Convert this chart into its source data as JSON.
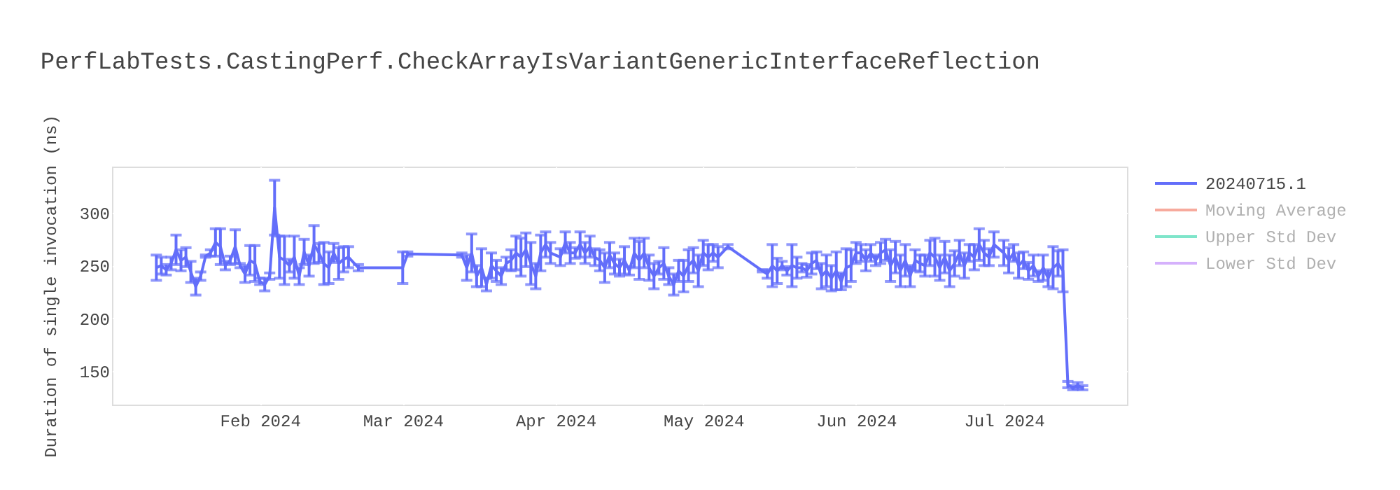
{
  "chart_data": {
    "type": "line",
    "title": "PerfLabTests.CastingPerf.CheckArrayIsVariantGenericInterfaceReflection",
    "ylabel": "Duration of single invocation (ns)",
    "xlim": [
      "2024-01-02",
      "2024-07-26"
    ],
    "xticks": [
      {
        "value": "2024-02-01",
        "label": "Feb 2024"
      },
      {
        "value": "2024-03-01",
        "label": "Mar 2024"
      },
      {
        "value": "2024-04-01",
        "label": "Apr 2024"
      },
      {
        "value": "2024-05-01",
        "label": "May 2024"
      },
      {
        "value": "2024-06-01",
        "label": "Jun 2024"
      },
      {
        "value": "2024-07-01",
        "label": "Jul 2024"
      }
    ],
    "ylim": [
      118,
      344
    ],
    "yticks": [
      150,
      200,
      250,
      300
    ],
    "grid": true,
    "legend": "right",
    "marker": "none",
    "line_style": "solid",
    "series": [
      {
        "name": "20240715.1",
        "color": "#636efa",
        "x": [
          "2024-01-11",
          "2024-01-12",
          "2024-01-13",
          "2024-01-14",
          "2024-01-15",
          "2024-01-16",
          "2024-01-17",
          "2024-01-18",
          "2024-01-19",
          "2024-01-20",
          "2024-01-21",
          "2024-01-22",
          "2024-01-23",
          "2024-01-24",
          "2024-01-25",
          "2024-01-26",
          "2024-01-27",
          "2024-01-28",
          "2024-01-29",
          "2024-01-30",
          "2024-01-31",
          "2024-02-01",
          "2024-02-02",
          "2024-02-03",
          "2024-02-04",
          "2024-02-05",
          "2024-02-06",
          "2024-02-07",
          "2024-02-08",
          "2024-02-09",
          "2024-02-10",
          "2024-02-11",
          "2024-02-12",
          "2024-02-13",
          "2024-02-14",
          "2024-02-15",
          "2024-02-16",
          "2024-02-17",
          "2024-02-18",
          "2024-02-19",
          "2024-02-21",
          "2024-03-01",
          "2024-03-02",
          "2024-03-13",
          "2024-03-14",
          "2024-03-15",
          "2024-03-16",
          "2024-03-17",
          "2024-03-18",
          "2024-03-19",
          "2024-03-20",
          "2024-03-21",
          "2024-03-22",
          "2024-03-23",
          "2024-03-24",
          "2024-03-25",
          "2024-03-26",
          "2024-03-27",
          "2024-03-28",
          "2024-03-29",
          "2024-03-30",
          "2024-03-31",
          "2024-04-02",
          "2024-04-03",
          "2024-04-04",
          "2024-04-05",
          "2024-04-06",
          "2024-04-07",
          "2024-04-08",
          "2024-04-09",
          "2024-04-10",
          "2024-04-11",
          "2024-04-12",
          "2024-04-13",
          "2024-04-14",
          "2024-04-15",
          "2024-04-16",
          "2024-04-17",
          "2024-04-18",
          "2024-04-19",
          "2024-04-20",
          "2024-04-21",
          "2024-04-22",
          "2024-04-23",
          "2024-04-24",
          "2024-04-25",
          "2024-04-26",
          "2024-04-27",
          "2024-04-28",
          "2024-04-29",
          "2024-04-30",
          "2024-05-01",
          "2024-05-02",
          "2024-05-03",
          "2024-05-04",
          "2024-05-06",
          "2024-05-13",
          "2024-05-14",
          "2024-05-15",
          "2024-05-16",
          "2024-05-17",
          "2024-05-18",
          "2024-05-19",
          "2024-05-20",
          "2024-05-21",
          "2024-05-22",
          "2024-05-23",
          "2024-05-24",
          "2024-05-25",
          "2024-05-26",
          "2024-05-27",
          "2024-05-28",
          "2024-05-29",
          "2024-05-30",
          "2024-05-31",
          "2024-06-01",
          "2024-06-02",
          "2024-06-03",
          "2024-06-04",
          "2024-06-05",
          "2024-06-06",
          "2024-06-07",
          "2024-06-08",
          "2024-06-09",
          "2024-06-10",
          "2024-06-11",
          "2024-06-12",
          "2024-06-13",
          "2024-06-14",
          "2024-06-15",
          "2024-06-16",
          "2024-06-17",
          "2024-06-18",
          "2024-06-19",
          "2024-06-20",
          "2024-06-21",
          "2024-06-22",
          "2024-06-23",
          "2024-06-24",
          "2024-06-25",
          "2024-06-26",
          "2024-06-27",
          "2024-06-28",
          "2024-06-29",
          "2024-07-01",
          "2024-07-02",
          "2024-07-03",
          "2024-07-04",
          "2024-07-05",
          "2024-07-06",
          "2024-07-07",
          "2024-07-08",
          "2024-07-09",
          "2024-07-10",
          "2024-07-11",
          "2024-07-12",
          "2024-07-13",
          "2024-07-14",
          "2024-07-15",
          "2024-07-16",
          "2024-07-17"
        ],
        "values": [
          248,
          250,
          246,
          252,
          265,
          255,
          258,
          244,
          230,
          240,
          259,
          262,
          272,
          268,
          250,
          255,
          268,
          250,
          242,
          255,
          252,
          235,
          232,
          240,
          305,
          258,
          255,
          250,
          258,
          240,
          263,
          250,
          270,
          262,
          252,
          248,
          262,
          252,
          256,
          258,
          248,
          248,
          261,
          260,
          248,
          262,
          240,
          248,
          232,
          250,
          245,
          240,
          252,
          255,
          262,
          258,
          265,
          252,
          240,
          262,
          270,
          262,
          258,
          272,
          262,
          262,
          270,
          262,
          268,
          258,
          255,
          248,
          260,
          252,
          248,
          255,
          245,
          262,
          255,
          262,
          248,
          240,
          248,
          252,
          240,
          232,
          245,
          240,
          250,
          255,
          245,
          262,
          258,
          262,
          258,
          268,
          245,
          242,
          250,
          245,
          250,
          245,
          250,
          248,
          248,
          245,
          252,
          255,
          240,
          245,
          238,
          245,
          235,
          248,
          250,
          262,
          262,
          255,
          262,
          255,
          262,
          265,
          250,
          258,
          245,
          255,
          240,
          255,
          252,
          250,
          262,
          258,
          248,
          258,
          245,
          252,
          262,
          250,
          262,
          258,
          270,
          262,
          258,
          270,
          262,
          255,
          262,
          250,
          255,
          245,
          250,
          240,
          248,
          238,
          248,
          252,
          245,
          137,
          134,
          136,
          134
        ],
        "errors": [
          12,
          8,
          5,
          6,
          14,
          10,
          9,
          10,
          8,
          4,
          1,
          3,
          13,
          17,
          4,
          4,
          16,
          2,
          8,
          14,
          17,
          3,
          6,
          3,
          26,
          20,
          23,
          6,
          20,
          8,
          12,
          10,
          18,
          9,
          20,
          15,
          9,
          15,
          12,
          10,
          3,
          15,
          2,
          2,
          12,
          18,
          10,
          18,
          6,
          12,
          10,
          8,
          6,
          10,
          16,
          18,
          16,
          20,
          12,
          17,
          12,
          10,
          8,
          10,
          10,
          5,
          12,
          10,
          10,
          8,
          10,
          14,
          12,
          10,
          8,
          13,
          4,
          14,
          18,
          14,
          12,
          12,
          6,
          15,
          8,
          10,
          10,
          15,
          15,
          12,
          15,
          12,
          12,
          8,
          10,
          2,
          1,
          4,
          20,
          12,
          4,
          4,
          20,
          10,
          4,
          6,
          10,
          8,
          12,
          15,
          12,
          18,
          8,
          18,
          15,
          10,
          8,
          10,
          8,
          5,
          10,
          10,
          15,
          15,
          15,
          15,
          10,
          10,
          8,
          10,
          12,
          18,
          12,
          15,
          15,
          12,
          12,
          12,
          8,
          12,
          15,
          12,
          8,
          12,
          12,
          12,
          8,
          12,
          8,
          8,
          10,
          5,
          12,
          8,
          20,
          12,
          20,
          3,
          2,
          3,
          2
        ]
      },
      {
        "name": "Moving Average",
        "color": "#ef553b"
      },
      {
        "name": "Upper Std Dev",
        "color": "#00cc96"
      },
      {
        "name": "Lower Std Dev",
        "color": "#ab63fa"
      }
    ]
  }
}
